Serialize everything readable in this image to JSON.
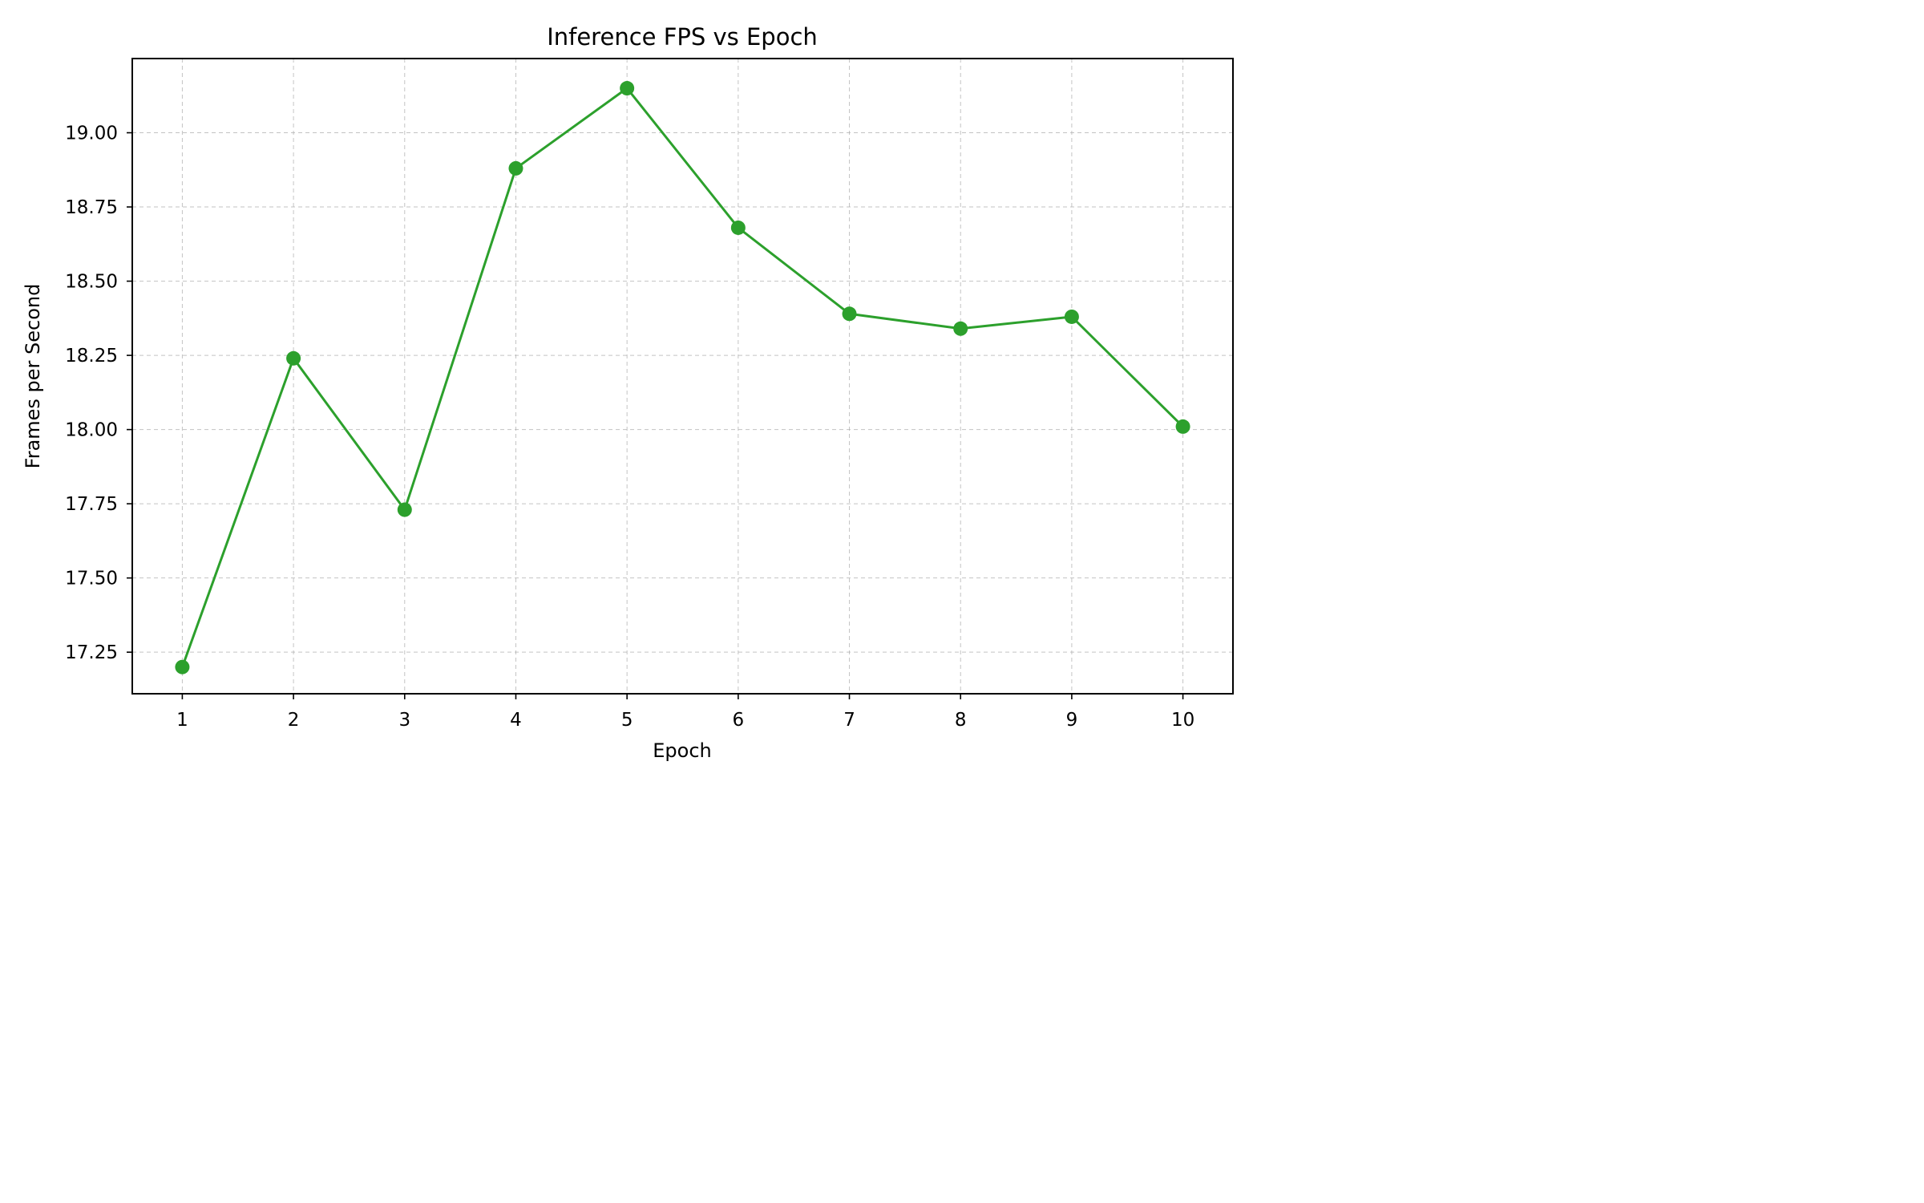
{
  "chart_data": {
    "type": "line",
    "title": "Inference FPS vs Epoch",
    "xlabel": "Epoch",
    "ylabel": "Frames per Second",
    "x": [
      1,
      2,
      3,
      4,
      5,
      6,
      7,
      8,
      9,
      10
    ],
    "xticks": [
      "1",
      "2",
      "3",
      "4",
      "5",
      "6",
      "7",
      "8",
      "9",
      "10"
    ],
    "yticks": [
      "17.25",
      "17.50",
      "17.75",
      "18.00",
      "18.25",
      "18.50",
      "18.75",
      "19.00"
    ],
    "xlim": [
      0.55,
      10.45
    ],
    "ylim": [
      17.11,
      19.25
    ],
    "grid": true,
    "series": [
      {
        "values": [
          17.2,
          18.24,
          17.73,
          18.88,
          19.15,
          18.68,
          18.39,
          18.34,
          18.38,
          18.01
        ],
        "color": "#2ca02c",
        "marker": "circle"
      }
    ]
  }
}
